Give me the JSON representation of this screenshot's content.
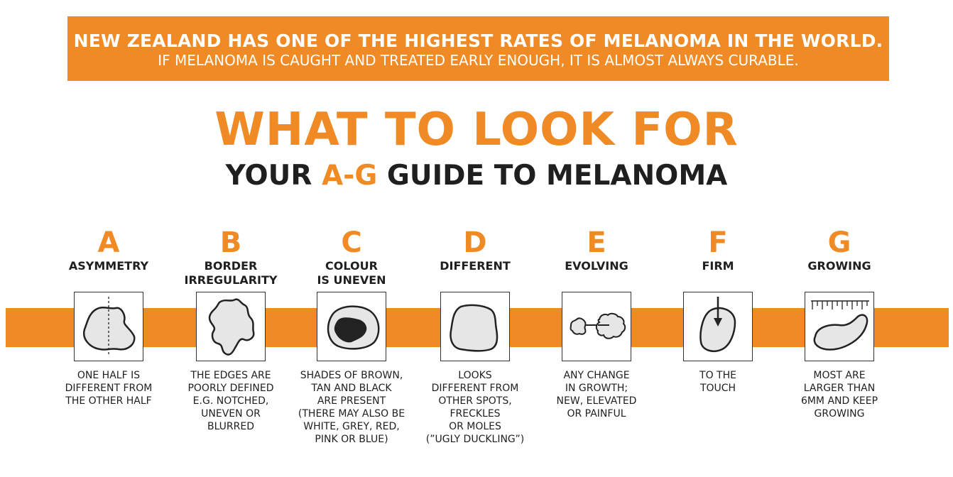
{
  "banner": {
    "line1": "NEW ZEALAND HAS ONE OF THE HIGHEST RATES OF MELANOMA IN THE WORLD.",
    "line2": "IF MELANOMA IS CAUGHT AND TREATED EARLY ENOUGH, IT IS ALMOST ALWAYS CURABLE."
  },
  "title": "WHAT TO LOOK FOR",
  "subtitle": {
    "pre": "YOUR ",
    "accent": "A-G",
    "post": " GUIDE TO MELANOMA"
  },
  "colors": {
    "accent": "#f08a24",
    "text": "#1f1f1f",
    "lesion_fill": "#e6e6e6",
    "dark": "#222222"
  },
  "items": [
    {
      "letter": "A",
      "name": [
        "ASYMMETRY"
      ],
      "icon": "asymmetric-mole-icon",
      "desc": [
        "ONE HALF IS",
        "DIFFERENT FROM",
        "THE OTHER HALF"
      ]
    },
    {
      "letter": "B",
      "name": [
        "BORDER",
        "IRREGULARITY"
      ],
      "icon": "irregular-border-mole-icon",
      "desc": [
        "THE EDGES ARE",
        "POORLY DEFINED",
        "E.G. NOTCHED,",
        "UNEVEN OR",
        "BLURRED"
      ]
    },
    {
      "letter": "C",
      "name": [
        "COLOUR",
        "IS UNEVEN"
      ],
      "icon": "uneven-colour-mole-icon",
      "desc": [
        "SHADES OF BROWN,",
        "TAN AND BLACK",
        "ARE PRESENT",
        "(THERE MAY ALSO BE",
        "WHITE, GREY, RED,",
        "PINK OR BLUE)"
      ]
    },
    {
      "letter": "D",
      "name": [
        "DIFFERENT"
      ],
      "icon": "different-mole-icon",
      "desc": [
        "LOOKS",
        "DIFFERENT FROM",
        "OTHER SPOTS,",
        "FRECKLES",
        "OR MOLES",
        "(”UGLY DUCKLING”)"
      ]
    },
    {
      "letter": "E",
      "name": [
        "EVOLVING"
      ],
      "icon": "evolving-mole-icon",
      "desc": [
        "ANY CHANGE",
        "IN GROWTH;",
        "NEW, ELEVATED",
        "OR PAINFUL"
      ]
    },
    {
      "letter": "F",
      "name": [
        "FIRM"
      ],
      "icon": "firm-mole-press-icon",
      "desc": [
        "TO THE",
        "TOUCH"
      ]
    },
    {
      "letter": "G",
      "name": [
        "GROWING"
      ],
      "icon": "growing-mole-ruler-icon",
      "desc": [
        "MOST ARE",
        "LARGER THAN",
        "6MM AND KEEP",
        "GROWING"
      ]
    }
  ]
}
